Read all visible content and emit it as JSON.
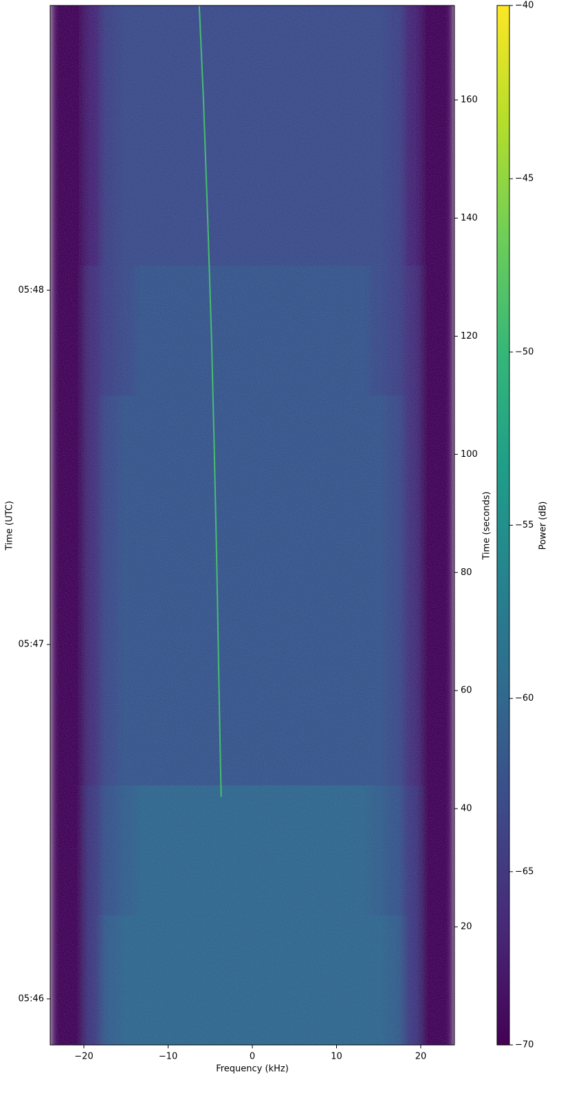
{
  "chart_data": {
    "type": "spectrogram",
    "xlabel": "Frequency (kHz)",
    "ylabel": "Time (UTC)",
    "y2label": "Time (seconds)",
    "colorbar_label": "Power (dB)",
    "xlim": [
      -24,
      24
    ],
    "ylim": [
      0,
      176
    ],
    "xticks": [
      {
        "value": -20,
        "label": "−20"
      },
      {
        "value": -10,
        "label": "−10"
      },
      0,
      10,
      20
    ],
    "yticks": [
      {
        "value": 7.8,
        "label": "05:46"
      },
      {
        "value": 67.8,
        "label": "05:47"
      },
      {
        "value": 127.8,
        "label": "05:48"
      }
    ],
    "y2ticks": [
      20,
      40,
      60,
      80,
      100,
      120,
      140,
      160
    ],
    "clim": [
      -70,
      -40
    ],
    "cticks": [
      {
        "value": -70,
        "label": "−70"
      },
      {
        "value": -65,
        "label": "−65"
      },
      {
        "value": -60,
        "label": "−60"
      },
      {
        "value": -55,
        "label": "−55"
      },
      {
        "value": -50,
        "label": "−50"
      },
      {
        "value": -45,
        "label": "−45"
      },
      {
        "value": -40,
        "label": "−40"
      }
    ],
    "colormap": [
      "#440154",
      "#482878",
      "#3e4989",
      "#31688e",
      "#26828e",
      "#1f9e89",
      "#35b779",
      "#6ece58",
      "#b5de2b",
      "#fde725"
    ],
    "x_edges": [
      -24,
      -22,
      -20,
      -18,
      -16,
      -14,
      -12,
      -10,
      -8,
      -6,
      -4,
      -2,
      0,
      2,
      4,
      6,
      8,
      10,
      12,
      14,
      16,
      18,
      20,
      22,
      24
    ],
    "y_edges": [
      0,
      22,
      44,
      66,
      88,
      110,
      132,
      154,
      176
    ],
    "values": [
      [
        -70,
        -70,
        -65,
        -61,
        -60,
        -60,
        -60,
        -60,
        -60,
        -60,
        -60,
        -60,
        -60,
        -60,
        -60,
        -60,
        -60,
        -60,
        -60,
        -60,
        -61,
        -65,
        -70,
        -70
      ],
      [
        -70,
        -70,
        -65,
        -62,
        -61,
        -60,
        -60,
        -60,
        -60,
        -60,
        -60,
        -60,
        -60,
        -60,
        -60,
        -60,
        -60,
        -60,
        -60,
        -61,
        -62,
        -65,
        -70,
        -70
      ],
      [
        -70,
        -70,
        -66,
        -63,
        -62,
        -62,
        -62,
        -62,
        -62,
        -62,
        -62,
        -62,
        -62,
        -62,
        -62,
        -62,
        -62,
        -62,
        -62,
        -62,
        -63,
        -66,
        -70,
        -70
      ],
      [
        -70,
        -70,
        -66,
        -63,
        -62,
        -62,
        -62,
        -62,
        -62,
        -62,
        -62,
        -62,
        -62,
        -62,
        -62,
        -62,
        -62,
        -62,
        -62,
        -62,
        -63,
        -66,
        -70,
        -70
      ],
      [
        -70,
        -70,
        -66,
        -63,
        -62,
        -62,
        -62,
        -62,
        -62,
        -62,
        -62,
        -62,
        -62,
        -62,
        -62,
        -62,
        -62,
        -62,
        -62,
        -62,
        -63,
        -66,
        -70,
        -70
      ],
      [
        -70,
        -70,
        -66,
        -64,
        -63,
        -62,
        -62,
        -62,
        -62,
        -62,
        -62,
        -62,
        -62,
        -62,
        -62,
        -62,
        -62,
        -62,
        -62,
        -63,
        -64,
        -66,
        -70,
        -70
      ],
      [
        -70,
        -70,
        -67,
        -64,
        -63,
        -63,
        -63,
        -63,
        -63,
        -63,
        -63,
        -63,
        -63,
        -63,
        -63,
        -63,
        -63,
        -63,
        -63,
        -63,
        -64,
        -67,
        -70,
        -70
      ],
      [
        -70,
        -70,
        -67,
        -64,
        -63,
        -63,
        -63,
        -63,
        -63,
        -63,
        -63,
        -63,
        -63,
        -63,
        -63,
        -63,
        -63,
        -63,
        -63,
        -63,
        -64,
        -67,
        -70,
        -70
      ]
    ],
    "signal": {
      "time": [
        42,
        60,
        80,
        100,
        120,
        140,
        160,
        176
      ],
      "frequency": [
        -3.7,
        -3.95,
        -4.2,
        -4.5,
        -4.85,
        -5.3,
        -5.8,
        -6.3
      ],
      "power": -49
    }
  }
}
